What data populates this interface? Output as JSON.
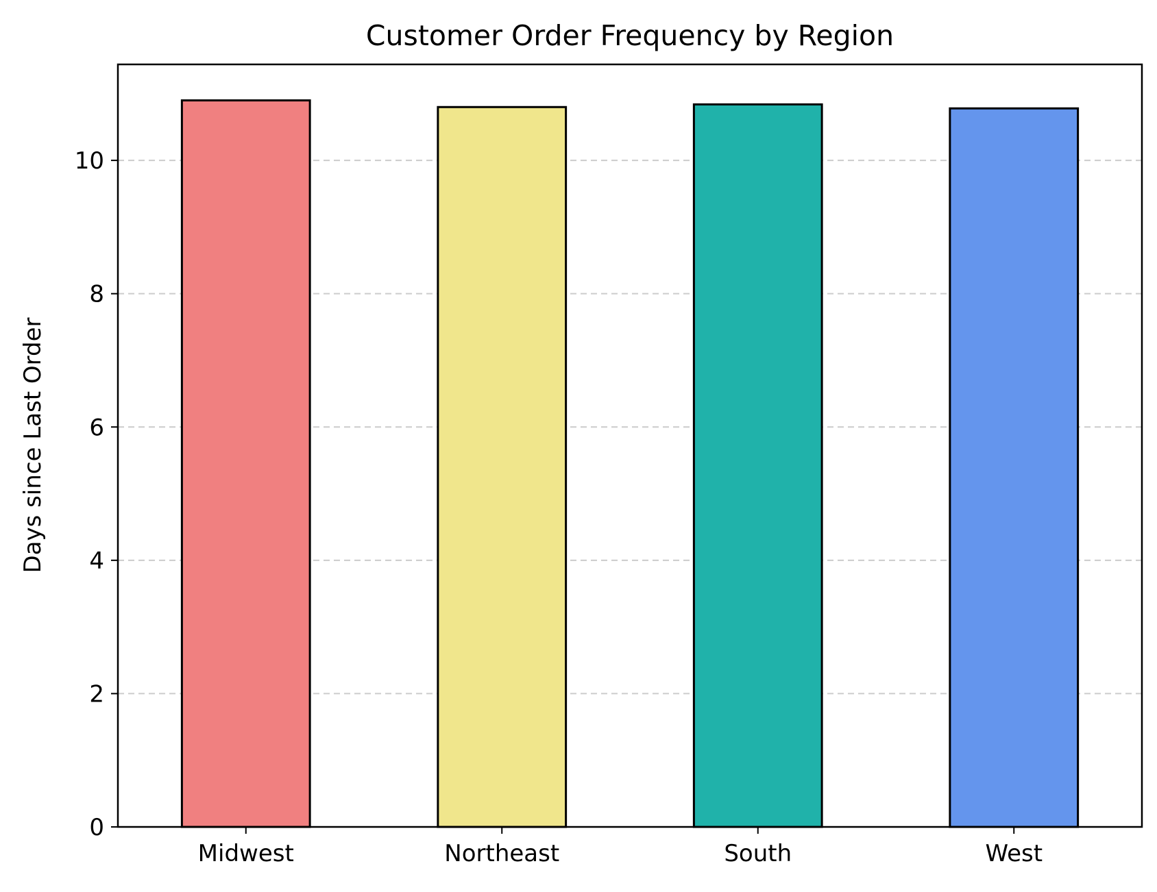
{
  "chart_data": {
    "type": "bar",
    "title": "Customer Order Frequency by Region",
    "xlabel": "",
    "ylabel": "Days since Last Order",
    "categories": [
      "Midwest",
      "Northeast",
      "South",
      "West"
    ],
    "values": [
      10.9,
      10.8,
      10.84,
      10.78
    ],
    "colors": [
      "#f08080",
      "#f0e68c",
      "#20b2aa",
      "#6495ed"
    ],
    "edge_color": "#000000",
    "ylim": [
      0,
      11.44
    ],
    "yticks": [
      0,
      2,
      4,
      6,
      8,
      10
    ],
    "ytick_labels": [
      "0",
      "2",
      "4",
      "6",
      "8",
      "10"
    ],
    "grid": {
      "axis": "y",
      "style": "dashed",
      "color": "#cccccc"
    },
    "legend": "none"
  }
}
